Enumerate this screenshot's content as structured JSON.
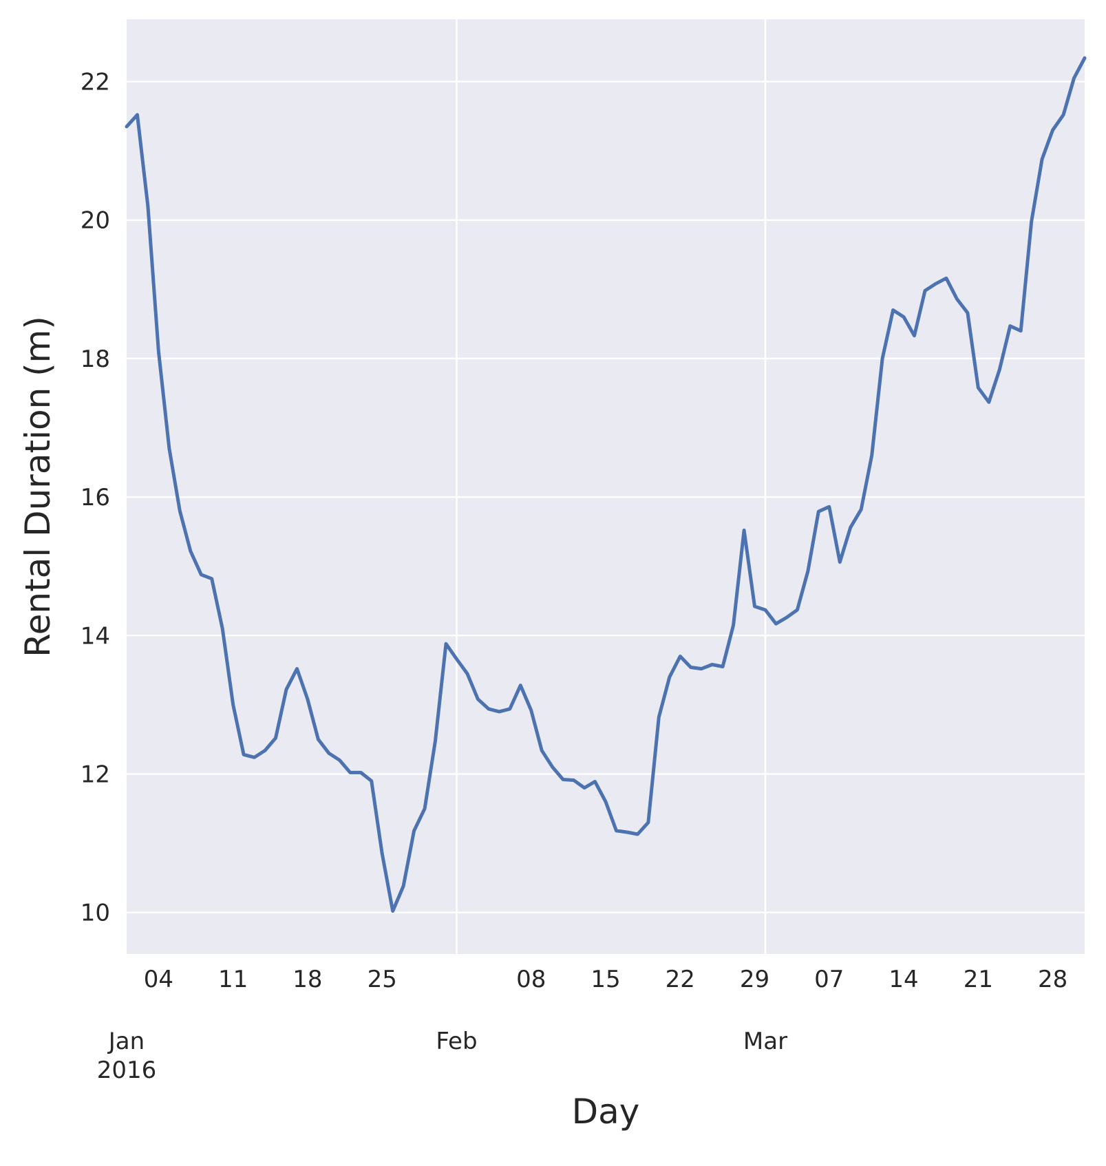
{
  "chart_data": {
    "type": "line",
    "title": "",
    "xlabel": "Day",
    "ylabel": "Rental Duration (m)",
    "x_start": "2016-01-01",
    "x_end": "2016-03-31",
    "xlim": [
      "2016-01-01",
      "2016-03-31"
    ],
    "ylim": [
      9.4,
      22.9
    ],
    "y_ticks": [
      10,
      12,
      14,
      16,
      18,
      20,
      22
    ],
    "x_minor_ticks": [
      {
        "date": "2016-01-04",
        "label": "04"
      },
      {
        "date": "2016-01-11",
        "label": "11"
      },
      {
        "date": "2016-01-18",
        "label": "18"
      },
      {
        "date": "2016-01-25",
        "label": "25"
      },
      {
        "date": "2016-02-08",
        "label": "08"
      },
      {
        "date": "2016-02-15",
        "label": "15"
      },
      {
        "date": "2016-02-22",
        "label": "22"
      },
      {
        "date": "2016-02-29",
        "label": "29"
      },
      {
        "date": "2016-03-07",
        "label": "07"
      },
      {
        "date": "2016-03-14",
        "label": "14"
      },
      {
        "date": "2016-03-21",
        "label": "21"
      },
      {
        "date": "2016-03-28",
        "label": "28"
      }
    ],
    "x_major_ticks": [
      {
        "date": "2016-01-01",
        "label": "Jan",
        "label2": "2016"
      },
      {
        "date": "2016-02-01",
        "label": "Feb"
      },
      {
        "date": "2016-03-01",
        "label": "Mar"
      }
    ],
    "grid": true,
    "background_color": "#eaeaf2",
    "grid_color": "#ffffff",
    "line_color": "#4c72b0",
    "series": [
      {
        "values": [
          21.35,
          21.52,
          20.2,
          18.1,
          16.7,
          15.8,
          15.22,
          14.88,
          14.82,
          14.1,
          13.0,
          12.28,
          12.24,
          12.34,
          12.52,
          13.22,
          13.52,
          13.08,
          12.5,
          12.3,
          12.2,
          12.02,
          12.02,
          11.9,
          10.85,
          10.02,
          10.38,
          11.18,
          11.5,
          12.48,
          13.88,
          13.66,
          13.45,
          13.08,
          12.94,
          12.9,
          12.94,
          13.28,
          12.92,
          12.34,
          12.1,
          11.92,
          11.91,
          11.8,
          11.89,
          11.6,
          11.18,
          11.16,
          11.13,
          11.3,
          12.82,
          13.4,
          13.7,
          13.54,
          13.52,
          13.58,
          13.55,
          14.15,
          15.52,
          14.42,
          14.37,
          14.17,
          14.26,
          14.37,
          14.93,
          15.79,
          15.86,
          15.06,
          15.56,
          15.82,
          16.6,
          18.0,
          18.7,
          18.6,
          18.33,
          18.98,
          19.08,
          19.16,
          18.86,
          18.66,
          17.58,
          17.37,
          17.84,
          18.47,
          18.4,
          19.98,
          20.88,
          21.3,
          21.52,
          22.05,
          22.34
        ]
      }
    ]
  }
}
